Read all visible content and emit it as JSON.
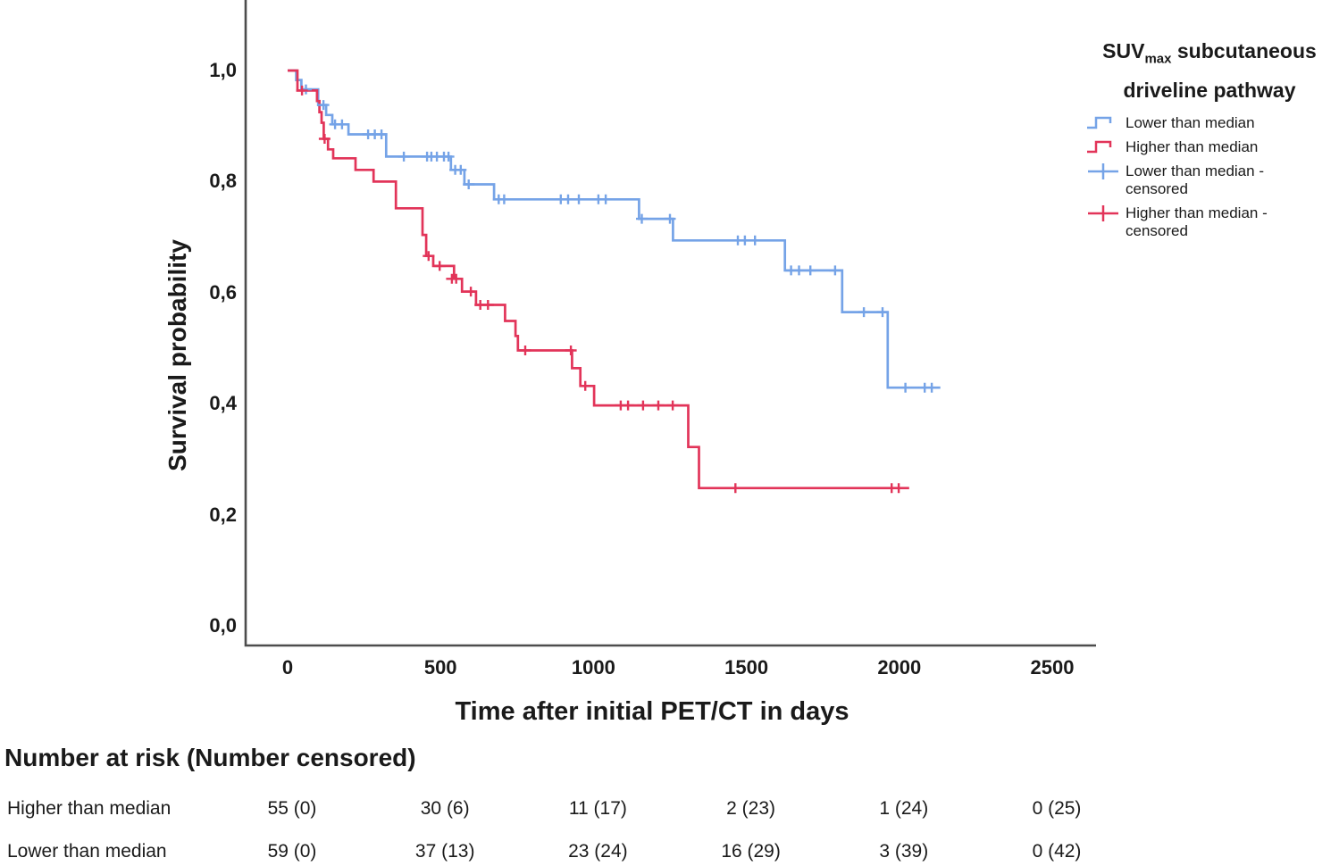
{
  "colors": {
    "lower_than_median": "#75A3E7",
    "higher_than_median": "#E23459",
    "axis": "#4D4D4D",
    "text": "#1A1A1A"
  },
  "legend": {
    "title_line1_prefix": "SUV",
    "title_line1_sub": "max",
    "title_line1_rest": " subcutaneous",
    "title_line2": "driveline pathway",
    "items": [
      {
        "label": "Lower than median",
        "symbol": "step",
        "color": "#75A3E7"
      },
      {
        "label": "Higher than median",
        "symbol": "step",
        "color": "#E23459"
      },
      {
        "label": "Lower than median - censored",
        "symbol": "plus",
        "color": "#75A3E7"
      },
      {
        "label": "Higher than median - censored",
        "symbol": "plus",
        "color": "#E23459"
      }
    ]
  },
  "chart_data": {
    "type": "line",
    "subtype": "kaplan-meier-step",
    "title": "",
    "xlabel": "Time after initial PET/CT in days",
    "ylabel": "Survival probability",
    "xlim": [
      0,
      2500
    ],
    "ylim": [
      0.0,
      1.0
    ],
    "grid": false,
    "legend_position": "right",
    "legend_title": "SUVmax subcutaneous driveline pathway",
    "x_ticks": [
      0,
      500,
      1000,
      1500,
      2000,
      2500
    ],
    "x_tick_labels": [
      "0",
      "500",
      "1000",
      "1500",
      "2000",
      "2500"
    ],
    "y_ticks": [
      1.0,
      0.8,
      0.6,
      0.4,
      0.2,
      0.0
    ],
    "y_tick_labels": [
      "1,0",
      "0,8",
      "0,6",
      "0,4",
      "0,2",
      "0,0"
    ],
    "series": [
      {
        "name": "Lower than median",
        "color": "#75A3E7",
        "end_day": 2134,
        "steps": [
          [
            0,
            1.0
          ],
          [
            28,
            0.983
          ],
          [
            45,
            0.966
          ],
          [
            100,
            0.938
          ],
          [
            126,
            0.92
          ],
          [
            146,
            0.903
          ],
          [
            199,
            0.885
          ],
          [
            322,
            0.845
          ],
          [
            534,
            0.821
          ],
          [
            578,
            0.795
          ],
          [
            675,
            0.768
          ],
          [
            1149,
            0.733
          ],
          [
            1260,
            0.694
          ],
          [
            1626,
            0.64
          ],
          [
            1813,
            0.565
          ],
          [
            1962,
            0.429
          ]
        ],
        "censored": [
          [
            60,
            0.966
          ],
          [
            117,
            0.938
          ],
          [
            155,
            0.903
          ],
          [
            178,
            0.903
          ],
          [
            263,
            0.885
          ],
          [
            285,
            0.885
          ],
          [
            307,
            0.885
          ],
          [
            380,
            0.845
          ],
          [
            456,
            0.845
          ],
          [
            470,
            0.845
          ],
          [
            488,
            0.845
          ],
          [
            511,
            0.845
          ],
          [
            526,
            0.845
          ],
          [
            548,
            0.821
          ],
          [
            566,
            0.821
          ],
          [
            592,
            0.795
          ],
          [
            690,
            0.768
          ],
          [
            708,
            0.768
          ],
          [
            893,
            0.768
          ],
          [
            917,
            0.768
          ],
          [
            952,
            0.768
          ],
          [
            1016,
            0.768
          ],
          [
            1040,
            0.768
          ],
          [
            1158,
            0.733
          ],
          [
            1250,
            0.733
          ],
          [
            1472,
            0.694
          ],
          [
            1495,
            0.694
          ],
          [
            1528,
            0.694
          ],
          [
            1646,
            0.64
          ],
          [
            1672,
            0.64
          ],
          [
            1709,
            0.64
          ],
          [
            1790,
            0.64
          ],
          [
            1884,
            0.565
          ],
          [
            1945,
            0.565
          ],
          [
            2020,
            0.429
          ],
          [
            2083,
            0.429
          ],
          [
            2106,
            0.429
          ]
        ]
      },
      {
        "name": "Higher than median",
        "color": "#E23459",
        "end_day": 2032,
        "steps": [
          [
            0,
            1.0
          ],
          [
            32,
            0.964
          ],
          [
            96,
            0.945
          ],
          [
            104,
            0.925
          ],
          [
            111,
            0.906
          ],
          [
            118,
            0.877
          ],
          [
            132,
            0.858
          ],
          [
            149,
            0.842
          ],
          [
            222,
            0.821
          ],
          [
            281,
            0.8
          ],
          [
            354,
            0.752
          ],
          [
            441,
            0.704
          ],
          [
            453,
            0.666
          ],
          [
            476,
            0.648
          ],
          [
            544,
            0.625
          ],
          [
            570,
            0.602
          ],
          [
            616,
            0.578
          ],
          [
            711,
            0.549
          ],
          [
            745,
            0.522
          ],
          [
            753,
            0.496
          ],
          [
            930,
            0.464
          ],
          [
            957,
            0.432
          ],
          [
            1002,
            0.397
          ],
          [
            1310,
            0.322
          ],
          [
            1345,
            0.248
          ]
        ],
        "censored": [
          [
            47,
            0.964
          ],
          [
            121,
            0.877
          ],
          [
            461,
            0.666
          ],
          [
            497,
            0.648
          ],
          [
            537,
            0.625
          ],
          [
            551,
            0.625
          ],
          [
            599,
            0.602
          ],
          [
            630,
            0.578
          ],
          [
            655,
            0.578
          ],
          [
            777,
            0.496
          ],
          [
            926,
            0.496
          ],
          [
            973,
            0.432
          ],
          [
            1089,
            0.397
          ],
          [
            1113,
            0.397
          ],
          [
            1162,
            0.397
          ],
          [
            1212,
            0.397
          ],
          [
            1259,
            0.397
          ],
          [
            1464,
            0.248
          ],
          [
            1975,
            0.248
          ],
          [
            1998,
            0.248
          ]
        ]
      }
    ]
  },
  "risk_table": {
    "title": "Number at risk (Number censored)",
    "columns_days": [
      0,
      500,
      1000,
      1500,
      2000,
      2500
    ],
    "rows": [
      {
        "label": "Higher than median",
        "values": [
          "55 (0)",
          "30 (6)",
          "11 (17)",
          "2 (23)",
          "1 (24)",
          "0 (25)"
        ]
      },
      {
        "label": "Lower than median",
        "values": [
          "59 (0)",
          "37 (13)",
          "23 (24)",
          "16 (29)",
          "3 (39)",
          "0 (42)"
        ]
      }
    ]
  }
}
